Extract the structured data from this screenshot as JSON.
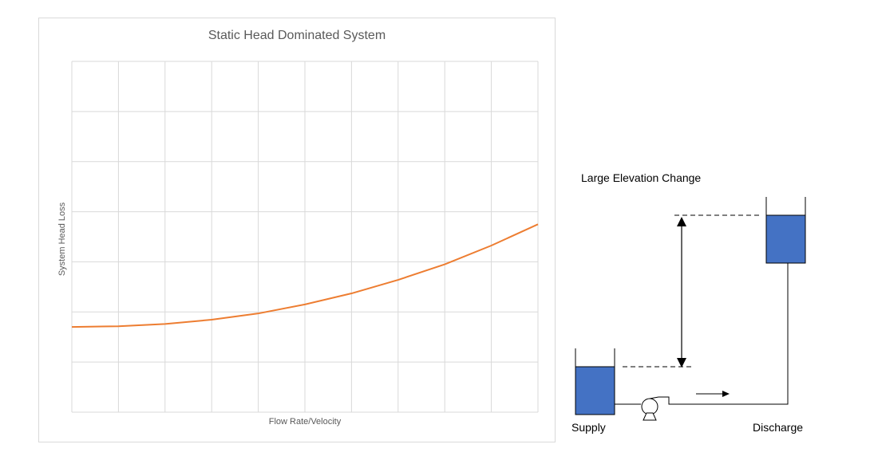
{
  "chart_data": {
    "type": "line",
    "title": "Static Head Dominated System",
    "xlabel": "Flow Rate/Velocity",
    "ylabel": "System Head Loss",
    "x": [
      0,
      1,
      2,
      3,
      4,
      5,
      6,
      7,
      8,
      9,
      10
    ],
    "series": [
      {
        "values": [
          3.4,
          3.43,
          3.52,
          3.69,
          3.94,
          4.3,
          4.74,
          5.28,
          5.9,
          6.65,
          7.5
        ]
      }
    ],
    "xlim": [
      0,
      10
    ],
    "ylim": [
      0,
      14
    ],
    "grid": true,
    "x_gridlines": 10,
    "y_gridlines": 7,
    "series_color": "#ed7d31",
    "grid_color": "#d9d9d9"
  },
  "diagram": {
    "title": "Large Elevation Change",
    "supply_label": "Supply",
    "discharge_label": "Discharge",
    "tank_color": "#4472c4"
  }
}
